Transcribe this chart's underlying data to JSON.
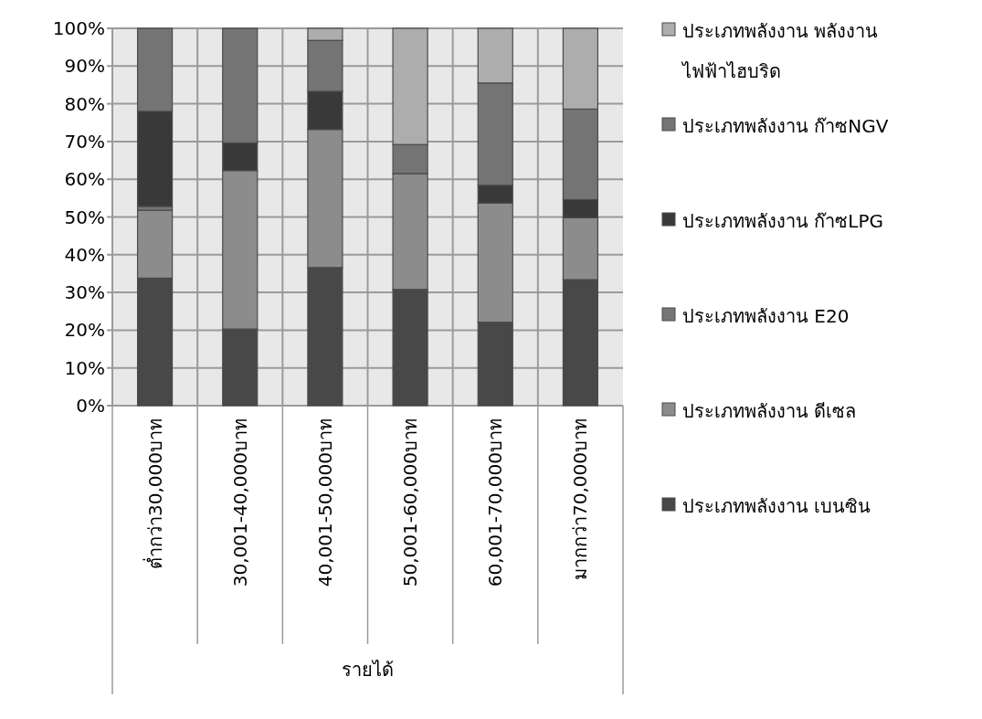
{
  "chart_data": {
    "type": "bar",
    "stacked": true,
    "xlabel": "รายได้",
    "categories": [
      "ต่ำกว่า30,000บาท",
      "30,001-40,000บาท",
      "40,001-50,000บาท",
      "50,001-60,000บาท",
      "60,001-70,000บาท",
      "มากกว่า70,000บาท"
    ],
    "series": [
      {
        "name": "ประเภทพลังงาน เบนซิน",
        "color": "#484848",
        "values": [
          33.8,
          20.3,
          36.6,
          30.8,
          22.1,
          33.4
        ]
      },
      {
        "name": "ประเภทพลังงาน ดีเซล",
        "color": "#8c8c8c",
        "values": [
          18,
          42,
          36.6,
          30.7,
          31.6,
          16.4
        ]
      },
      {
        "name": "ประเภทพลังงาน E20",
        "color": "#767676",
        "values": [
          1,
          0,
          0,
          0,
          0,
          0
        ]
      },
      {
        "name": "ประเภทพลังงาน ก๊าซLPG",
        "color": "#393939",
        "values": [
          25.2,
          7.3,
          10.1,
          0,
          4.7,
          4.8
        ]
      },
      {
        "name": "ประเภทพลังงาน ก๊าซNGV",
        "color": "#747474",
        "values": [
          22,
          30.4,
          13.5,
          7.7,
          27.1,
          24
        ]
      },
      {
        "name": "ประเภทพลังงาน พลังงาน ไฟฟ้าไฮบริด",
        "color": "#adadad",
        "values": [
          0,
          0,
          3.2,
          30.8,
          14.5,
          21.4
        ]
      }
    ],
    "ylim": [
      0,
      100
    ],
    "yticks": [
      {
        "value": 0,
        "label": "0%"
      },
      {
        "value": 10,
        "label": "10%"
      },
      {
        "value": 20,
        "label": "20%"
      },
      {
        "value": 30,
        "label": "30%"
      },
      {
        "value": 40,
        "label": "40%"
      },
      {
        "value": 50,
        "label": "50%"
      },
      {
        "value": 60,
        "label": "60%"
      },
      {
        "value": 70,
        "label": "70%"
      },
      {
        "value": 80,
        "label": "80%"
      },
      {
        "value": 90,
        "label": "90%"
      },
      {
        "value": 100,
        "label": "100%"
      }
    ],
    "grid": true,
    "legend": "right"
  }
}
